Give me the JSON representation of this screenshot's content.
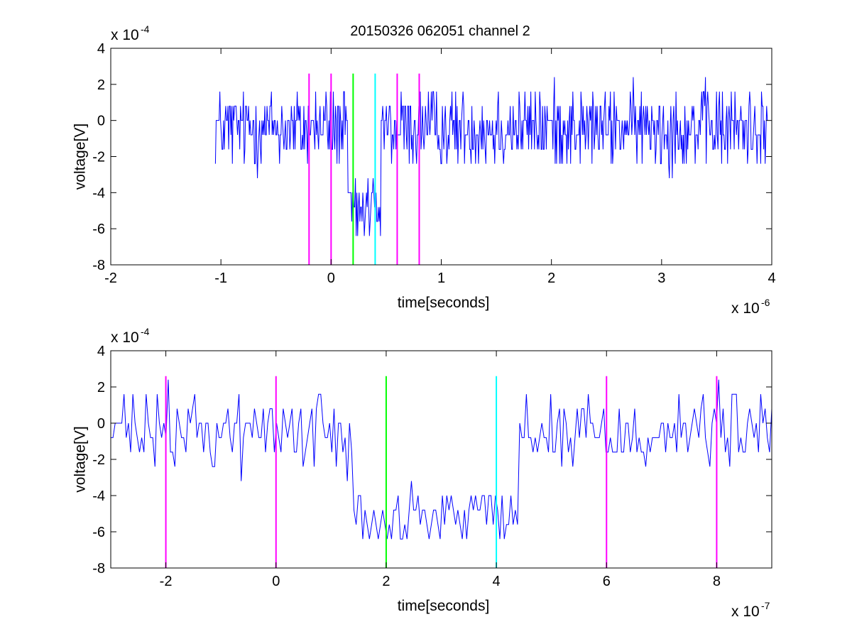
{
  "figure_title": "20150326 062051 channel 2",
  "chart_data": [
    {
      "type": "line",
      "title": "20150326 062051 channel 2",
      "xlabel": "time[seconds]",
      "ylabel": "voltage[V]",
      "x_multiplier_text": "x 10",
      "x_multiplier_exp": "-6",
      "y_multiplier_text": "x 10",
      "y_multiplier_exp": "-4",
      "xlim": [
        -2,
        4
      ],
      "ylim": [
        -8,
        4
      ],
      "xticks": [
        -2,
        -1,
        0,
        1,
        2,
        3,
        4
      ],
      "xtick_labels": [
        "-2",
        "-1",
        "0",
        "1",
        "2",
        "3",
        "4"
      ],
      "yticks": [
        -8,
        -6,
        -4,
        -2,
        0,
        2,
        4
      ],
      "ytick_labels": [
        "-8",
        "-6",
        "-4",
        "-2",
        "0",
        "2",
        "4"
      ],
      "grid": false,
      "signal": {
        "color": "#0000ff",
        "x_start": -1.05,
        "x_end": 3.96,
        "points": 750,
        "baseline": -0.4,
        "noise_levels": [
          -3.2,
          -2.4,
          -1.6,
          -0.8,
          0,
          0.8,
          1.6,
          2.4
        ],
        "dip": {
          "start": 0.15,
          "end": 0.45,
          "level": -5.0
        }
      },
      "markers": [
        {
          "x": -0.2,
          "color": "#ff00ff",
          "y_top": 2.6
        },
        {
          "x": 0.0,
          "color": "#ff00ff",
          "y_top": 2.6
        },
        {
          "x": 0.2,
          "color": "#00ff00",
          "y_top": 2.6
        },
        {
          "x": 0.4,
          "color": "#00ffff",
          "y_top": 2.6
        },
        {
          "x": 0.6,
          "color": "#ff00ff",
          "y_top": 2.6
        },
        {
          "x": 0.8,
          "color": "#ff00ff",
          "y_top": 2.6
        }
      ]
    },
    {
      "type": "line",
      "title": "",
      "xlabel": "time[seconds]",
      "ylabel": "voltage[V]",
      "x_multiplier_text": "x 10",
      "x_multiplier_exp": "-7",
      "y_multiplier_text": "x 10",
      "y_multiplier_exp": "-4",
      "xlim": [
        -3,
        9
      ],
      "ylim": [
        -8,
        4
      ],
      "xticks": [
        -2,
        0,
        2,
        4,
        6,
        8
      ],
      "xtick_labels": [
        "-2",
        "0",
        "2",
        "4",
        "6",
        "8"
      ],
      "yticks": [
        -8,
        -6,
        -4,
        -2,
        0,
        2,
        4
      ],
      "ytick_labels": [
        "-8",
        "-6",
        "-4",
        "-2",
        "0",
        "2",
        "4"
      ],
      "grid": false,
      "signal": {
        "color": "#0000ff",
        "x_start": -3.0,
        "x_end": 9.0,
        "points": 300,
        "baseline": -0.4,
        "noise_levels": [
          -3.2,
          -2.4,
          -1.6,
          -0.8,
          0,
          0.8,
          1.6,
          2.4
        ],
        "dip": {
          "start": 1.4,
          "end": 4.4,
          "level": -5.0
        }
      },
      "markers": [
        {
          "x": -2,
          "color": "#ff00ff",
          "y_top": 2.6
        },
        {
          "x": 0,
          "color": "#ff00ff",
          "y_top": 2.6
        },
        {
          "x": 2,
          "color": "#00ff00",
          "y_top": 2.6
        },
        {
          "x": 4,
          "color": "#00ffff",
          "y_top": 2.6
        },
        {
          "x": 6,
          "color": "#ff00ff",
          "y_top": 2.6
        },
        {
          "x": 8,
          "color": "#ff00ff",
          "y_top": 2.6
        }
      ]
    }
  ]
}
